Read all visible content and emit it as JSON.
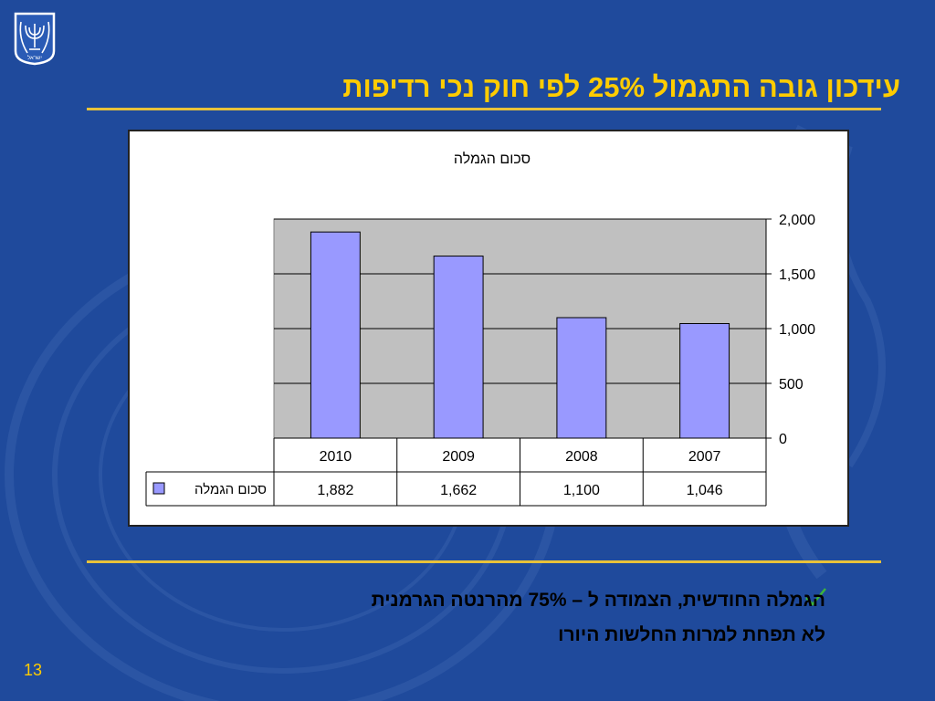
{
  "slide": {
    "title": "עידכון גובה התגמול 25% לפי חוק נכי רדיפות",
    "page_number": "13",
    "bullet_line_1": "הגמלה החודשית, הצמודה ל – 75% מהרנטה הגרמנית",
    "bullet_line_2": "לא תפחת למרות החלשות היורו",
    "bullet_icon": "check-icon",
    "emblem_icon": "state-emblem-icon",
    "emblem_text": "ישראל",
    "colors": {
      "background": "#1f4a9c",
      "title": "#ffcc00",
      "rule": "#e8c23a",
      "bar": "#9999ff",
      "plot_area": "#c0c0c0",
      "check": "#3cb43c"
    }
  },
  "chart_data": {
    "type": "bar",
    "title": "סכום הגמלה",
    "categories": [
      "2010",
      "2009",
      "2008",
      "2007"
    ],
    "series": [
      {
        "name": "סכום הגמלה",
        "values": [
          1882,
          1662,
          1100,
          1046
        ]
      }
    ],
    "data_table_values": [
      "1,882",
      "1,662",
      "1,100",
      "1,046"
    ],
    "ylim": [
      0,
      2000
    ],
    "yticks": [
      0,
      500,
      1000,
      1500,
      2000
    ],
    "ytick_labels": [
      "0",
      "500",
      "1,000",
      "1,500",
      "2,000"
    ],
    "y_axis_side": "right",
    "grid": true,
    "legend": "data-table",
    "data_table": true
  }
}
